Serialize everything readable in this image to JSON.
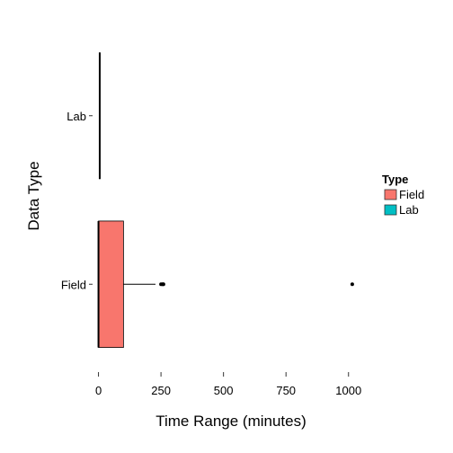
{
  "chart_data": {
    "type": "boxplot",
    "orientation": "horizontal",
    "xlabel": "Time Range (minutes)",
    "ylabel": "Data Type",
    "xlim": [
      -20,
      1080
    ],
    "x_ticks": [
      0,
      250,
      500,
      750,
      1000
    ],
    "x_tick_labels": [
      "0",
      "250",
      "500",
      "750",
      "1000"
    ],
    "categories": [
      "Field",
      "Lab"
    ],
    "grid": false,
    "boxes": [
      {
        "category": "Field",
        "type": "Field",
        "min": 0,
        "q1": 0,
        "median": 0,
        "q3": 100,
        "max": 228,
        "outliers": [
          250,
          255,
          258,
          260,
          1015
        ]
      },
      {
        "category": "Lab",
        "type": "Lab",
        "min": 5,
        "q1": 5,
        "median": 5,
        "q3": 5,
        "max": 5,
        "outliers": []
      }
    ],
    "legend": {
      "title": "Type",
      "placement": "right",
      "entries": [
        {
          "label": "Field",
          "color": "#F8766D"
        },
        {
          "label": "Lab",
          "color": "#00BFC4"
        }
      ]
    }
  }
}
